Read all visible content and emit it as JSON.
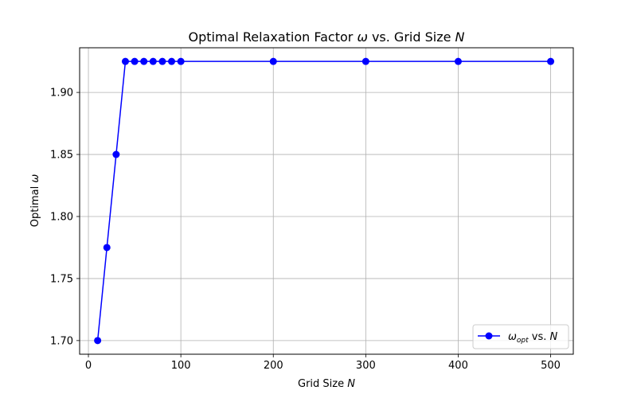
{
  "chart_data": {
    "type": "line",
    "title": {
      "pre": "Optimal Relaxation Factor ",
      "sym": "ω",
      "mid": " vs. Grid Size ",
      "sym2": "N"
    },
    "xlabel": {
      "pre": "Grid Size ",
      "sym": "N"
    },
    "ylabel": {
      "pre": "Optimal ",
      "sym": "ω"
    },
    "xlim": [
      -9.5,
      524.5
    ],
    "ylim": [
      1.689,
      1.936
    ],
    "xticks": [
      0,
      100,
      200,
      300,
      400,
      500
    ],
    "xtick_labels": [
      "0",
      "100",
      "200",
      "300",
      "400",
      "500"
    ],
    "yticks": [
      1.7,
      1.75,
      1.8,
      1.85,
      1.9
    ],
    "ytick_labels": [
      "1.70",
      "1.75",
      "1.80",
      "1.85",
      "1.90"
    ],
    "grid": true,
    "legend_position": "lower-right",
    "series": [
      {
        "name": {
          "sym": "ω",
          "sub": "opt",
          "mid": " vs. ",
          "sym2": "N"
        },
        "color": "#0000ff",
        "marker": "circle",
        "x": [
          10,
          20,
          30,
          40,
          50,
          60,
          70,
          80,
          90,
          100,
          200,
          300,
          400,
          500
        ],
        "values": [
          1.7,
          1.775,
          1.85,
          1.925,
          1.925,
          1.925,
          1.925,
          1.925,
          1.925,
          1.925,
          1.925,
          1.925,
          1.925,
          1.925
        ]
      }
    ]
  }
}
